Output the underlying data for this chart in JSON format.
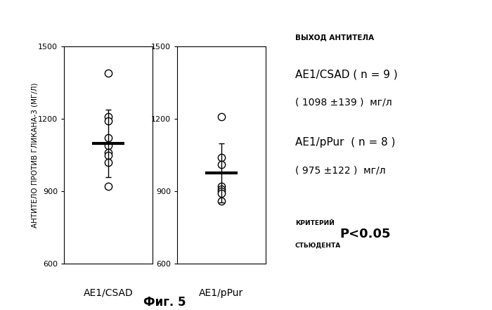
{
  "group1_label": "AE1/CSAD",
  "group2_label": "AE1/pPur",
  "group1_points": [
    1390,
    1210,
    1190,
    1120,
    1090,
    1060,
    1050,
    1020,
    920
  ],
  "group2_points": [
    1210,
    1040,
    1010,
    920,
    910,
    900,
    890,
    860
  ],
  "group1_mean": 1098,
  "group1_sd": 139,
  "group2_mean": 975,
  "group2_sd": 122,
  "ylim": [
    600,
    1500
  ],
  "yticks": [
    600,
    900,
    1200,
    1500
  ],
  "ylabel": "АНТИТЕЛО ПРОТИВ ГЛИКАНА-3 (МГ/Л)",
  "fig_title": "Фиг. 5",
  "annotation_title": "ВЫХОД АНТИТЕЛА",
  "annotation_line1": "AE1/CSAD ( n = 9 )",
  "annotation_line2": "( 1098 ±139 )  мг/л",
  "annotation_line3": "AE1/pPur  ( n = 8 )",
  "annotation_line4": "( 975 ±122 )  мг/л",
  "annotation_criteria1": "КРИТЕРИЙ",
  "annotation_criteria2": "СТЬЮДЕНТА",
  "annotation_pvalue": "P<0.05",
  "background_color": "#ffffff",
  "circle_color": "white",
  "circle_edgecolor": "black",
  "mean_bar_color": "black",
  "circle_size": 55,
  "mean_bar_lw": 3,
  "mean_bar_halfwidth": 0.22
}
